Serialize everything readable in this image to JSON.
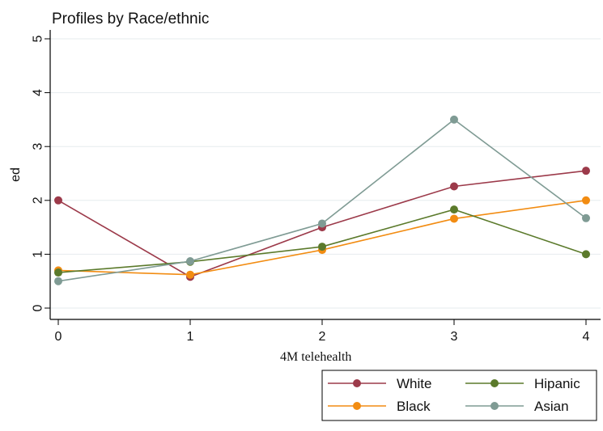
{
  "chart_data": {
    "type": "line",
    "title": "Profiles by Race/ethnic",
    "xlabel": "4M telehealth",
    "ylabel": "ed",
    "x": [
      0,
      1,
      2,
      3,
      4
    ],
    "xlim": [
      0,
      4
    ],
    "ylim": [
      0,
      5
    ],
    "xticks": [
      "0",
      "1",
      "2",
      "3",
      "4"
    ],
    "yticks": [
      "0",
      "1",
      "2",
      "3",
      "4",
      "5"
    ],
    "grid": "horizontal",
    "legend_position": "bottom-right",
    "series": [
      {
        "name": "White",
        "color": "#9c3a4a",
        "values": [
          2.0,
          0.58,
          1.5,
          2.26,
          2.55
        ]
      },
      {
        "name": "Black",
        "color": "#f28c12",
        "values": [
          0.7,
          0.62,
          1.08,
          1.66,
          2.0
        ]
      },
      {
        "name": "Hipanic",
        "color": "#5b7a2b",
        "values": [
          0.66,
          0.86,
          1.14,
          1.83,
          1.0
        ]
      },
      {
        "name": "Asian",
        "color": "#7f9b94",
        "values": [
          0.5,
          0.87,
          1.57,
          3.5,
          1.67
        ]
      }
    ]
  }
}
